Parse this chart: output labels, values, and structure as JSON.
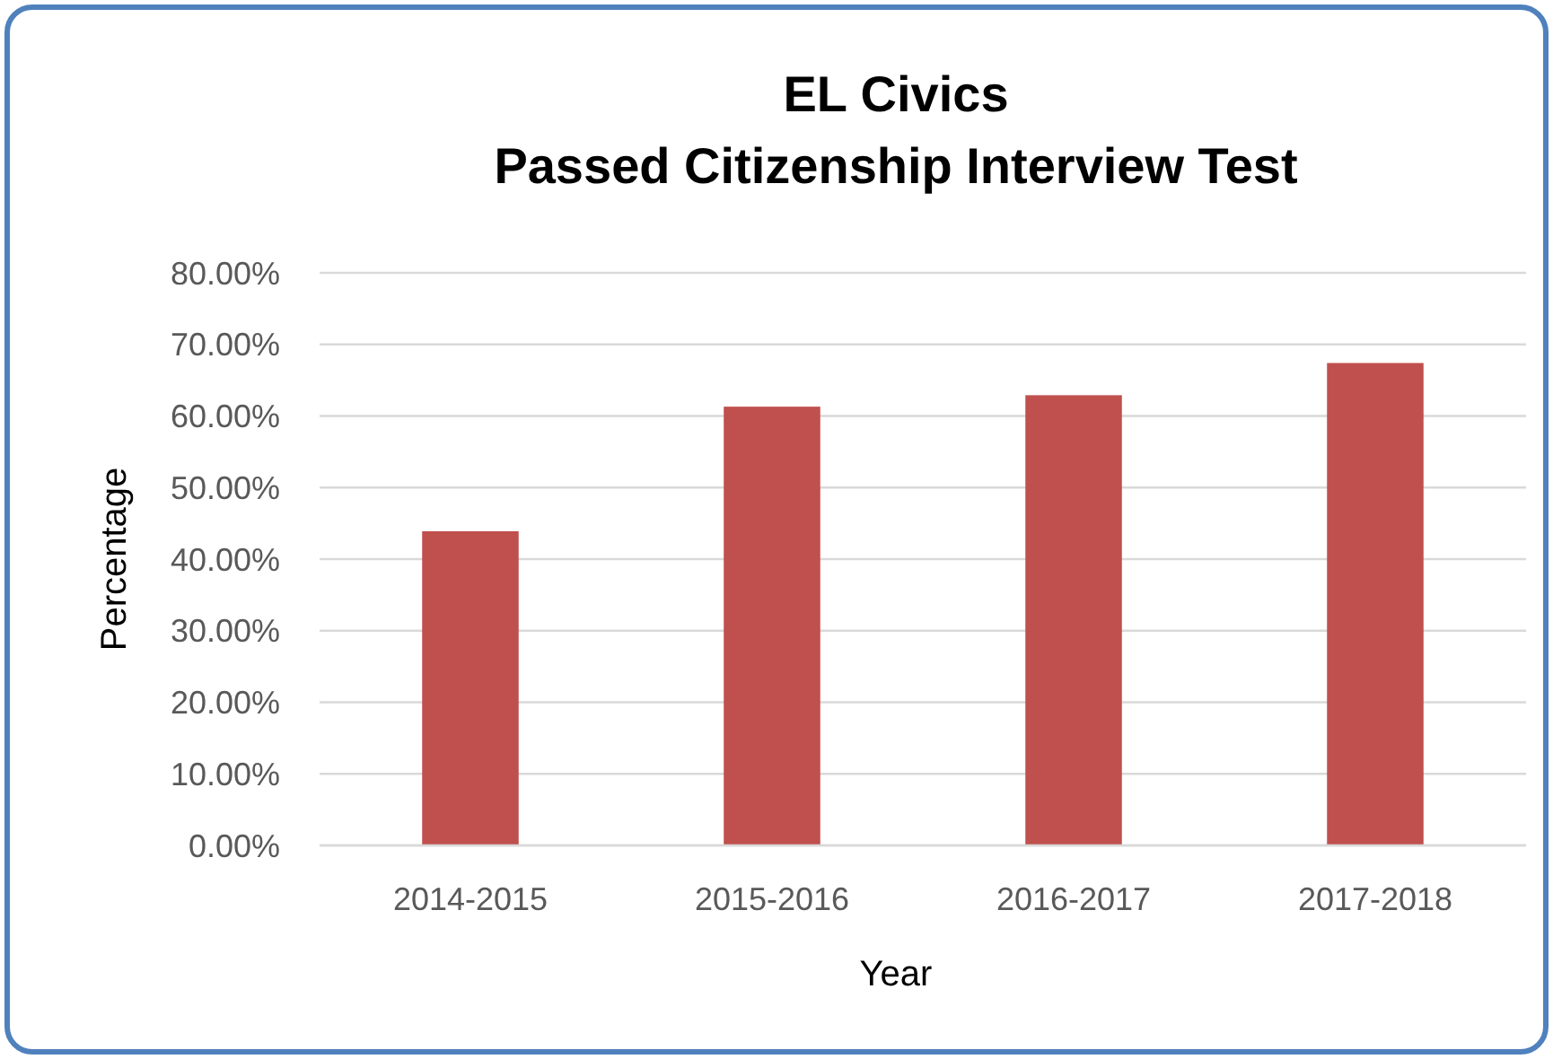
{
  "chart_data": {
    "type": "bar",
    "title": "EL Civics\nPassed Citizenship Interview Test",
    "xlabel": "Year",
    "ylabel": "Percentage",
    "categories": [
      "2014-2015",
      "2015-2016",
      "2016-2017",
      "2017-2018"
    ],
    "values": [
      43.9,
      61.3,
      62.9,
      67.4
    ],
    "color": "#c0504d",
    "ylim": [
      0,
      80
    ],
    "yticks": [
      {
        "value": 0,
        "label": "0.00%"
      },
      {
        "value": 10,
        "label": "10.00%"
      },
      {
        "value": 20,
        "label": "20.00%"
      },
      {
        "value": 30,
        "label": "30.00%"
      },
      {
        "value": 40,
        "label": "40.00%"
      },
      {
        "value": 50,
        "label": "50.00%"
      },
      {
        "value": 60,
        "label": "60.00%"
      },
      {
        "value": 70,
        "label": "70.00%"
      },
      {
        "value": 80,
        "label": "80.00%"
      }
    ],
    "grid": "y"
  }
}
